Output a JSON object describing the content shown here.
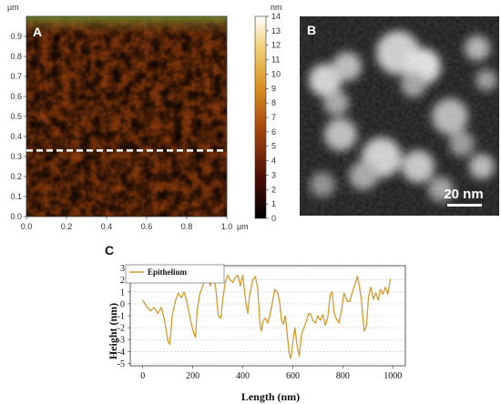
{
  "figure": {
    "panel_a": {
      "letter": "A",
      "y_unit": "µm",
      "x_unit": "µm",
      "x_ticks": [
        "0.0",
        "0.2",
        "0.4",
        "0.6",
        "0.8",
        "1.0"
      ],
      "y_ticks": [
        "0.0",
        "0.1",
        "0.2",
        "0.3",
        "0.4",
        "0.5",
        "0.6",
        "0.7",
        "0.8",
        "0.9"
      ],
      "colorbar_unit": "nm",
      "colorbar_ticks": [
        "0",
        "1",
        "2",
        "3",
        "4",
        "5",
        "6",
        "7",
        "8",
        "9",
        "10",
        "11",
        "12",
        "13",
        "14"
      ],
      "scan_line_y_um": 0.33,
      "colors": {
        "low": "#000000",
        "mid": "#b85c10",
        "high": "#f8e28a",
        "top": "#ffffff",
        "line": "#ffffff"
      }
    },
    "panel_b": {
      "letter": "B",
      "scale_bar_label": "20 nm",
      "colors": {
        "background": "#1a1a1a",
        "particles": "#cfcfcf"
      }
    },
    "panel_c": {
      "letter": "C"
    }
  },
  "chart_data": [
    {
      "type": "heatmap",
      "panel": "A",
      "xlabel": "µm",
      "ylabel": "µm",
      "xlim": [
        0.0,
        1.0
      ],
      "ylim": [
        0.0,
        1.0
      ],
      "x_ticks": [
        0.0,
        0.2,
        0.4,
        0.6,
        0.8,
        1.0
      ],
      "y_ticks": [
        0.0,
        0.1,
        0.2,
        0.3,
        0.4,
        0.5,
        0.6,
        0.7,
        0.8,
        0.9
      ],
      "colorbar": {
        "unit": "nm",
        "min": 0,
        "max": 14
      },
      "annotation": "dashed scan line at y = 0.33 µm"
    },
    {
      "type": "line",
      "panel": "C",
      "xlabel": "Length (nm)",
      "ylabel": "Height (nm)",
      "xlim": [
        -50,
        1050
      ],
      "ylim": [
        -5.2,
        3.2
      ],
      "x_ticks": [
        0,
        200,
        400,
        600,
        800,
        1000
      ],
      "y_ticks": [
        -5,
        -4,
        -3,
        -2,
        -1,
        0,
        1,
        2,
        3
      ],
      "grid": "horizontal dashed",
      "legend_position": "top-left",
      "series": [
        {
          "name": "Epithelium",
          "color": "#d69a2a",
          "points": [
            [
              0,
              0.3
            ],
            [
              15,
              -0.2
            ],
            [
              30,
              -0.6
            ],
            [
              45,
              -0.3
            ],
            [
              60,
              -0.8
            ],
            [
              75,
              -0.3
            ],
            [
              88,
              -1.5
            ],
            [
              100,
              -3.1
            ],
            [
              108,
              -3.4
            ],
            [
              118,
              -1.0
            ],
            [
              130,
              0.2
            ],
            [
              142,
              0.9
            ],
            [
              155,
              0.5
            ],
            [
              165,
              1.0
            ],
            [
              175,
              0.3
            ],
            [
              190,
              -1.2
            ],
            [
              200,
              -2.2
            ],
            [
              210,
              -2.8
            ],
            [
              218,
              -0.5
            ],
            [
              228,
              0.8
            ],
            [
              240,
              1.5
            ],
            [
              250,
              2.2
            ],
            [
              262,
              2.6
            ],
            [
              270,
              1.5
            ],
            [
              280,
              2.5
            ],
            [
              292,
              1.3
            ],
            [
              302,
              -1.0
            ],
            [
              312,
              -1.2
            ],
            [
              320,
              0.4
            ],
            [
              330,
              1.8
            ],
            [
              340,
              2.4
            ],
            [
              350,
              2.0
            ],
            [
              360,
              1.8
            ],
            [
              370,
              2.2
            ],
            [
              380,
              2.4
            ],
            [
              390,
              1.5
            ],
            [
              400,
              2.4
            ],
            [
              412,
              0.2
            ],
            [
              420,
              -0.8
            ],
            [
              428,
              0.8
            ],
            [
              440,
              2.0
            ],
            [
              450,
              2.3
            ],
            [
              460,
              1.3
            ],
            [
              468,
              -1.5
            ],
            [
              474,
              -2.3
            ],
            [
              482,
              -1.4
            ],
            [
              490,
              -1.2
            ],
            [
              500,
              -1.6
            ],
            [
              508,
              -1.0
            ],
            [
              520,
              0.3
            ],
            [
              528,
              1.2
            ],
            [
              540,
              0.9
            ],
            [
              548,
              0.0
            ],
            [
              555,
              -1.4
            ],
            [
              562,
              -1.7
            ],
            [
              570,
              -1.0
            ],
            [
              578,
              -2.6
            ],
            [
              586,
              -4.2
            ],
            [
              592,
              -4.6
            ],
            [
              600,
              -3.2
            ],
            [
              608,
              -2.0
            ],
            [
              618,
              -3.6
            ],
            [
              626,
              -4.4
            ],
            [
              635,
              -2.5
            ],
            [
              645,
              -2.0
            ],
            [
              655,
              -1.4
            ],
            [
              663,
              -0.8
            ],
            [
              672,
              -0.9
            ],
            [
              680,
              -1.4
            ],
            [
              690,
              -1.6
            ],
            [
              700,
              -1.0
            ],
            [
              710,
              -1.4
            ],
            [
              720,
              -0.9
            ],
            [
              730,
              -1.8
            ],
            [
              740,
              -1.1
            ],
            [
              750,
              0.8
            ],
            [
              758,
              1.0
            ],
            [
              765,
              -0.8
            ],
            [
              775,
              -1.3
            ],
            [
              785,
              -1.6
            ],
            [
              795,
              -0.5
            ],
            [
              805,
              0.9
            ],
            [
              818,
              0.2
            ],
            [
              828,
              0.2
            ],
            [
              838,
              1.0
            ],
            [
              848,
              1.6
            ],
            [
              858,
              2.3
            ],
            [
              866,
              1.5
            ],
            [
              875,
              0.2
            ],
            [
              885,
              -2.3
            ],
            [
              895,
              -1.8
            ],
            [
              903,
              0.6
            ],
            [
              912,
              1.4
            ],
            [
              922,
              0.4
            ],
            [
              932,
              0.9
            ],
            [
              942,
              0.3
            ],
            [
              950,
              1.2
            ],
            [
              960,
              0.8
            ],
            [
              970,
              1.4
            ],
            [
              980,
              0.8
            ],
            [
              990,
              2.1
            ]
          ]
        }
      ]
    }
  ]
}
